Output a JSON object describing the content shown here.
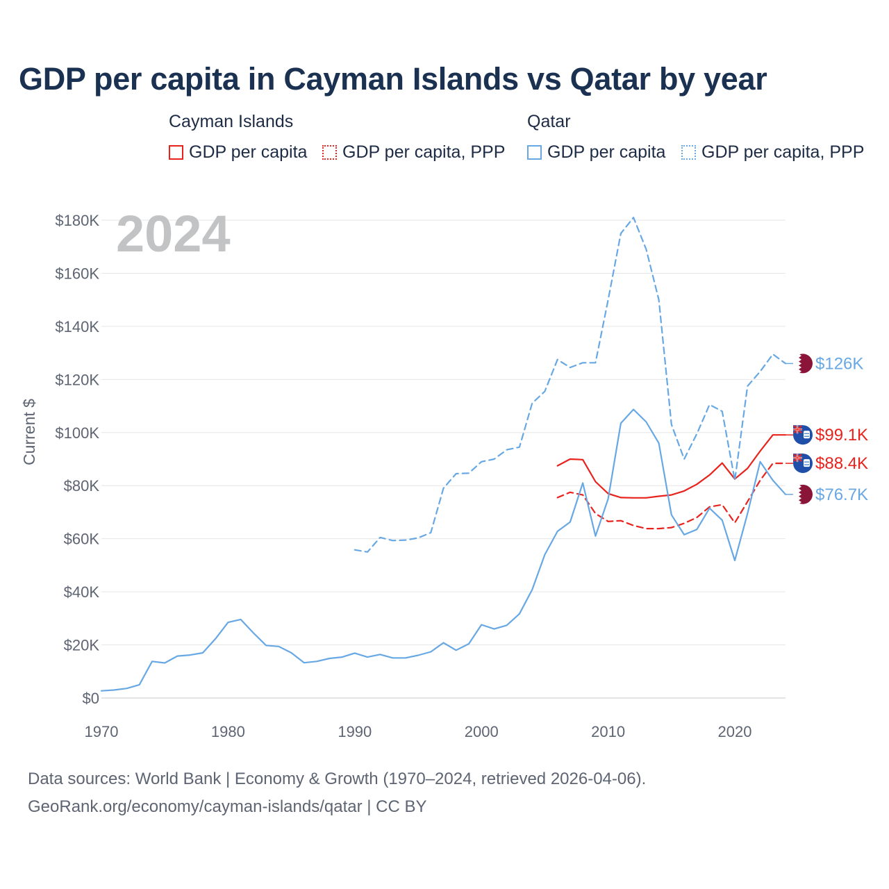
{
  "title": "GDP per capita in Cayman Islands vs Qatar by year",
  "legend": {
    "groups": [
      {
        "name": "Cayman Islands",
        "items": [
          "GDP per capita",
          "GDP per capita, PPP"
        ]
      },
      {
        "name": "Qatar",
        "items": [
          "GDP per capita",
          "GDP per capita, PPP"
        ]
      }
    ]
  },
  "colors": {
    "cayman": "#e8221c",
    "qatar": "#67a8e4",
    "qatar_flag": "#8a1538",
    "cayman_flag": "#1f4fa8"
  },
  "footer": {
    "line1": "Data sources: World Bank | Economy & Growth (1970–2024, retrieved 2026-04-06).",
    "line2": "GeoRank.org/economy/cayman-islands/qatar | CC BY"
  },
  "chart_data": {
    "type": "line",
    "year_label": "2024",
    "ylabel": "Current $",
    "xlim": [
      1970,
      2024
    ],
    "ylim": [
      0,
      180000
    ],
    "xticks": [
      1970,
      1980,
      1990,
      2000,
      2010,
      2020
    ],
    "xtick_labels": [
      "1970",
      "1980",
      "1990",
      "2000",
      "2010",
      "2020"
    ],
    "yticks": [
      0,
      20000,
      40000,
      60000,
      80000,
      100000,
      120000,
      140000,
      160000,
      180000
    ],
    "ytick_labels": [
      "$0",
      "$20K",
      "$40K",
      "$60K",
      "$80K",
      "$100K",
      "$120K",
      "$140K",
      "$160K",
      "$180K"
    ],
    "series": [
      {
        "name": "Cayman Islands GDP per capita",
        "country": "Cayman Islands",
        "color": "#e8221c",
        "dash": "none",
        "end_label": "$99.1K",
        "flag": "cayman",
        "x": [
          2006,
          2007,
          2008,
          2009,
          2010,
          2011,
          2012,
          2013,
          2014,
          2015,
          2016,
          2017,
          2018,
          2019,
          2020,
          2021,
          2022,
          2023,
          2024
        ],
        "y": [
          87500,
          90000,
          89800,
          81500,
          77000,
          75500,
          75400,
          75400,
          76000,
          76500,
          78000,
          80500,
          84000,
          88500,
          82500,
          86500,
          93000,
          99100,
          99100
        ]
      },
      {
        "name": "Cayman Islands GDP per capita, PPP",
        "country": "Cayman Islands",
        "color": "#e8221c",
        "dash": "dashed",
        "end_label": "$88.4K",
        "flag": "cayman",
        "x": [
          2006,
          2007,
          2008,
          2009,
          2010,
          2011,
          2012,
          2013,
          2014,
          2015,
          2016,
          2017,
          2018,
          2019,
          2020,
          2021,
          2022,
          2023,
          2024
        ],
        "y": [
          75500,
          77500,
          76500,
          69500,
          66500,
          66800,
          65000,
          63800,
          63800,
          64200,
          65800,
          68000,
          72000,
          72800,
          66000,
          74000,
          82000,
          88400,
          88400
        ]
      },
      {
        "name": "Qatar GDP per capita",
        "country": "Qatar",
        "color": "#67a8e4",
        "dash": "none",
        "end_label": "$76.7K",
        "flag": "qatar",
        "x": [
          1970,
          1971,
          1972,
          1973,
          1974,
          1975,
          1976,
          1977,
          1978,
          1979,
          1980,
          1981,
          1982,
          1983,
          1984,
          1985,
          1986,
          1987,
          1988,
          1989,
          1990,
          1991,
          1992,
          1993,
          1994,
          1995,
          1996,
          1997,
          1998,
          1999,
          2000,
          2001,
          2002,
          2003,
          2004,
          2005,
          2006,
          2007,
          2008,
          2009,
          2010,
          2011,
          2012,
          2013,
          2014,
          2015,
          2016,
          2017,
          2018,
          2019,
          2020,
          2021,
          2022,
          2023,
          2024
        ],
        "y": [
          2700,
          3000,
          3600,
          5000,
          13800,
          13200,
          15800,
          16200,
          17000,
          22300,
          28500,
          29600,
          24500,
          19800,
          19400,
          17000,
          13300,
          13800,
          14900,
          15400,
          16900,
          15400,
          16400,
          15100,
          15100,
          16100,
          17400,
          20800,
          18000,
          20400,
          27600,
          26000,
          27400,
          31700,
          40800,
          54000,
          62800,
          66300,
          81000,
          61000,
          75000,
          103500,
          108700,
          104000,
          96000,
          69000,
          61500,
          63500,
          71500,
          67000,
          51800,
          69500,
          89000,
          82000,
          76700
        ]
      },
      {
        "name": "Qatar GDP per capita, PPP",
        "country": "Qatar",
        "color": "#67a8e4",
        "dash": "dashed",
        "end_label": "$126K",
        "flag": "qatar",
        "x": [
          1990,
          1991,
          1992,
          1993,
          1994,
          1995,
          1996,
          1997,
          1998,
          1999,
          2000,
          2001,
          2002,
          2003,
          2004,
          2005,
          2006,
          2007,
          2008,
          2009,
          2010,
          2011,
          2012,
          2013,
          2014,
          2015,
          2016,
          2017,
          2018,
          2019,
          2020,
          2021,
          2022,
          2023,
          2024
        ],
        "y": [
          55800,
          55000,
          60500,
          59300,
          59500,
          60300,
          62300,
          79000,
          84500,
          84700,
          89000,
          90000,
          93500,
          94500,
          111000,
          115500,
          127500,
          124500,
          126300,
          126300,
          150000,
          175000,
          181000,
          169000,
          150000,
          103000,
          90000,
          99500,
          110500,
          108000,
          82000,
          117500,
          123000,
          129500,
          126000
        ]
      }
    ]
  }
}
